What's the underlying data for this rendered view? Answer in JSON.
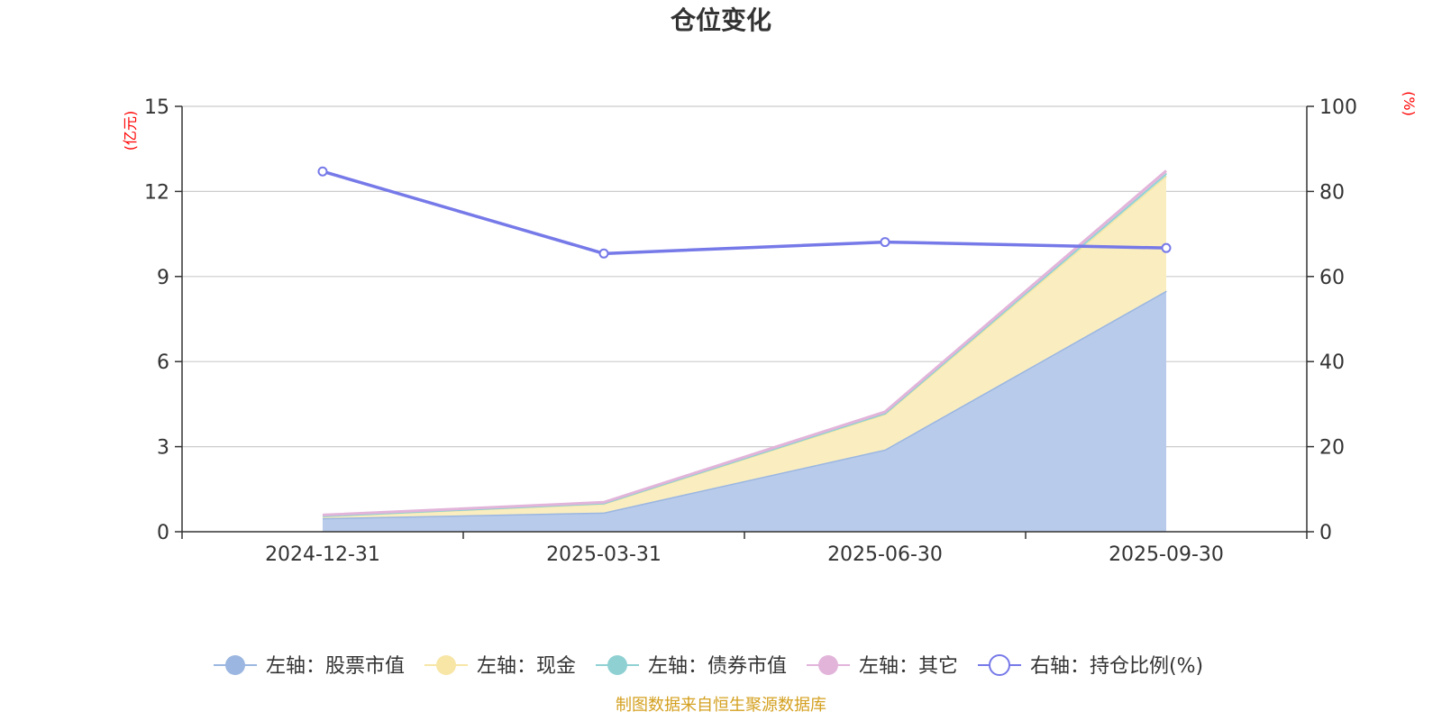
{
  "chart_data": {
    "type": "area",
    "title": "仓位变化",
    "categories": [
      "2024-12-31",
      "2025-03-31",
      "2025-06-30",
      "2025-09-30"
    ],
    "left_axis": {
      "unit": "(亿元)",
      "ticks": [
        "0",
        "3",
        "6",
        "9",
        "12",
        "15"
      ],
      "ylim": [
        0,
        15
      ],
      "unit_color": "#ff0000"
    },
    "right_axis": {
      "unit": "(%)",
      "ticks": [
        "0",
        "20",
        "40",
        "60",
        "80",
        "100"
      ],
      "ylim": [
        0,
        100
      ],
      "unit_color": "#ff0000"
    },
    "series": [
      {
        "name": "左轴：股票市值",
        "axis": "left",
        "type": "area-stacked",
        "color": "#9bb6e0",
        "fill": "#b8cbeb",
        "values": [
          0.48,
          0.68,
          2.9,
          8.5
        ]
      },
      {
        "name": "左轴：现金",
        "axis": "left",
        "type": "area-stacked",
        "color": "#f7e6a6",
        "fill": "#faeec1",
        "values": [
          0.07,
          0.31,
          1.25,
          4.05
        ]
      },
      {
        "name": "左轴：债券市值",
        "axis": "left",
        "type": "area-stacked",
        "color": "#8fd0d3",
        "fill": "#a9dcde",
        "values": [
          0.01,
          0.02,
          0.03,
          0.1
        ]
      },
      {
        "name": "左轴：其它",
        "axis": "left",
        "type": "area-stacked",
        "color": "#e2b4da",
        "fill": "#eccbe6",
        "values": [
          0.03,
          0.03,
          0.05,
          0.08
        ]
      },
      {
        "name": "右轴：持仓比例(%)",
        "axis": "right",
        "type": "line",
        "color": "#7679e8",
        "values": [
          84.7,
          65.4,
          68.1,
          66.7
        ]
      }
    ],
    "grid": true,
    "legend_position": "bottom"
  },
  "source_note": "制图数据来自恒生聚源数据库",
  "source_color": "#d4a020"
}
